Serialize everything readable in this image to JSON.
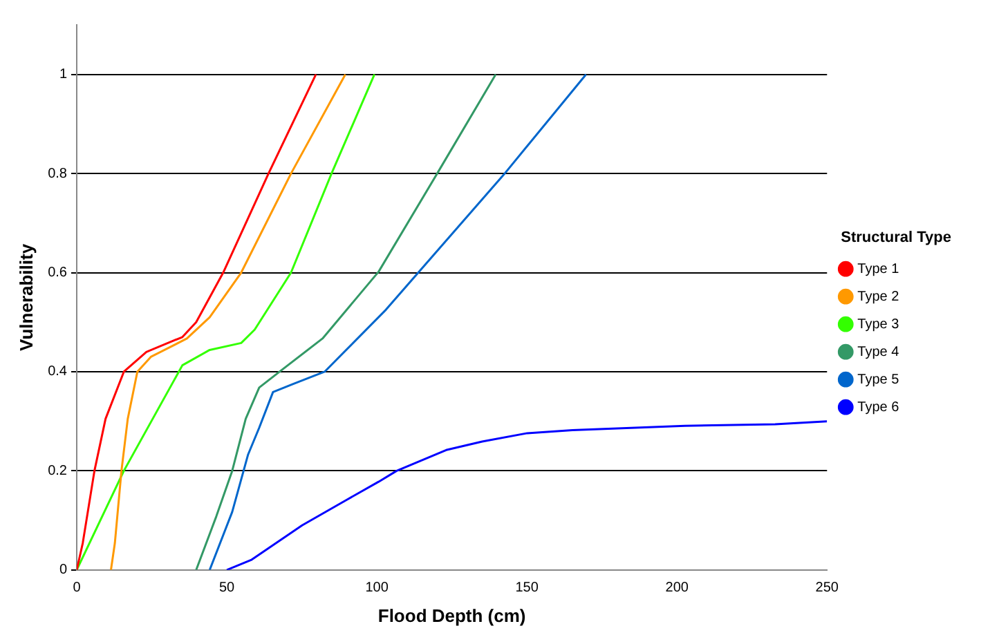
{
  "chart_data": {
    "type": "line",
    "xlabel": "Flood Depth (cm)",
    "ylabel": "Vulnerability",
    "legend_title": "Structural Type",
    "legend": "right",
    "grid": "y",
    "marker": "none",
    "line_style": "solid",
    "xlim": [
      0,
      250
    ],
    "xticks": [
      0,
      50,
      100,
      150,
      200,
      250
    ],
    "ylim": [
      0,
      1.1
    ],
    "yticks": [
      0,
      0.2,
      0.4,
      0.6,
      0.8,
      1
    ],
    "series": [
      {
        "name": "Type 1",
        "color": "#ff0000",
        "x": [
          0,
          2,
          5.9,
          9.6,
          15.7,
          23.2,
          35.2,
          39.8,
          48.8,
          63.9,
          79.7
        ],
        "values": [
          0,
          0.054,
          0.2,
          0.305,
          0.4,
          0.44,
          0.47,
          0.5,
          0.6,
          0.8,
          1
        ]
      },
      {
        "name": "Type 2",
        "color": "#ff9900",
        "x": [
          11.4,
          12.7,
          14.9,
          17,
          20.2,
          24.7,
          36.7,
          44.3,
          54.8,
          71.4,
          89.5
        ],
        "values": [
          0,
          0.054,
          0.2,
          0.305,
          0.4,
          0.43,
          0.467,
          0.51,
          0.6,
          0.8,
          1
        ]
      },
      {
        "name": "Type 3",
        "color": "#33ff00",
        "x": [
          0,
          15.7,
          35.2,
          44.3,
          54.8,
          59.3,
          71.4,
          84.9,
          99.2
        ],
        "values": [
          0,
          0.2,
          0.413,
          0.444,
          0.458,
          0.485,
          0.6,
          0.8,
          1
        ]
      },
      {
        "name": "Type 4",
        "color": "#339966",
        "x": [
          39.8,
          46.5,
          51.8,
          56.3,
          60.8,
          68.4,
          81.9,
          100.6,
          120.1,
          139.6
        ],
        "values": [
          0,
          0.108,
          0.2,
          0.305,
          0.368,
          0.404,
          0.467,
          0.602,
          0.8,
          1
        ]
      },
      {
        "name": "Type 5",
        "color": "#0066cc",
        "x": [
          44.3,
          51.8,
          57.1,
          60.8,
          65.4,
          72,
          82.6,
          103,
          114.1,
          142.6,
          169.7
        ],
        "values": [
          0,
          0.117,
          0.233,
          0.287,
          0.359,
          0.375,
          0.4,
          0.525,
          0.602,
          0.8,
          1
        ]
      },
      {
        "name": "Type 6",
        "color": "#0000ff",
        "x": [
          50,
          58.1,
          75.1,
          90.1,
          100.6,
          106.6,
          123.1,
          135.1,
          150.1,
          165.2,
          202.7,
          232.7,
          250
        ],
        "values": [
          0,
          0.02,
          0.09,
          0.142,
          0.178,
          0.2,
          0.242,
          0.259,
          0.276,
          0.282,
          0.291,
          0.294,
          0.3
        ]
      }
    ]
  }
}
